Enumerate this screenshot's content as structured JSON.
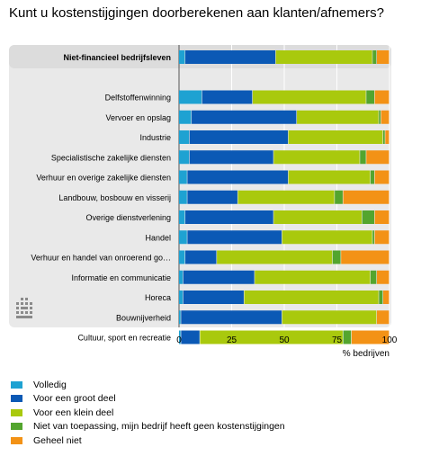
{
  "chart_data": {
    "type": "bar",
    "orientation": "horizontal",
    "stacked": true,
    "title": "Kunt u kostenstijgingen doorberekenen aan klanten/afnemers?",
    "xlabel": "% bedrijven",
    "xlim": [
      0,
      100
    ],
    "xticks": [
      "0",
      "25",
      "50",
      "75",
      "100"
    ],
    "grid": true,
    "legend_position": "bottom",
    "categories": [
      "Niet-financieel bedrijfsleven",
      "",
      "Delfstoffenwinning",
      "Vervoer en opslag",
      "Industrie",
      "Specialistische zakelijke diensten",
      "Verhuur en overige zakelijke diensten",
      "Landbouw, bosbouw en visserij",
      "Overige dienstverlening",
      "Handel",
      "Verhuur en handel van onroerend go…",
      "Informatie en communicatie",
      "Horeca",
      "Bouwnijverheid",
      "Cultuur, sport en recreatie"
    ],
    "series": [
      {
        "name": "Volledig",
        "color": "#1ea2d2",
        "values": [
          3,
          null,
          11,
          6,
          5,
          5,
          4,
          4,
          3,
          4,
          3,
          2,
          2,
          1,
          1
        ]
      },
      {
        "name": "Voor een groot deel",
        "color": "#0b59b5",
        "values": [
          43,
          null,
          24,
          50,
          47,
          40,
          48,
          24,
          42,
          45,
          15,
          34,
          29,
          48,
          9
        ]
      },
      {
        "name": "Voor een klein deel",
        "color": "#a9c90d",
        "values": [
          46,
          null,
          54,
          39,
          45,
          41,
          39,
          46,
          42,
          43,
          55,
          55,
          64,
          45,
          68
        ]
      },
      {
        "name": "Niet van toepassing, mijn bedrijf heeft geen kostenstijgingen",
        "color": "#53a52e",
        "values": [
          2,
          null,
          4,
          1,
          1,
          3,
          2,
          4,
          6,
          1,
          4,
          3,
          2,
          0,
          4
        ]
      },
      {
        "name": "Geheel niet",
        "color": "#f39216",
        "values": [
          6,
          null,
          7,
          4,
          2,
          11,
          7,
          22,
          7,
          7,
          23,
          6,
          3,
          6,
          18
        ]
      }
    ]
  },
  "icons": {
    "logo": "cbs-logo-icon"
  }
}
